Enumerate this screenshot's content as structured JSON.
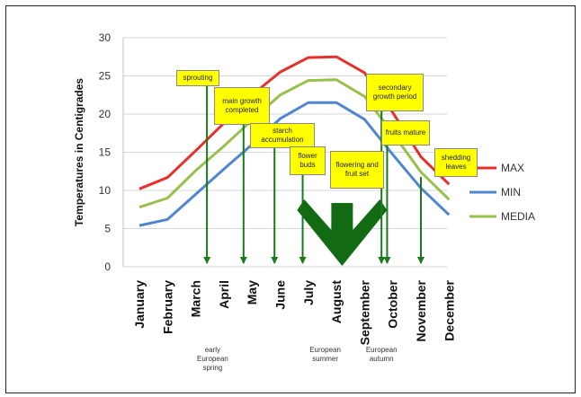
{
  "chart_data": {
    "type": "line",
    "ylabel": "Temperatures in Centigrades",
    "ylim": [
      0,
      30
    ],
    "yticks": [
      0,
      5,
      10,
      15,
      20,
      25,
      30
    ],
    "grid": "horizontal",
    "categories": [
      "January",
      "February",
      "March",
      "April",
      "May",
      "June",
      "July",
      "August",
      "September",
      "October",
      "November",
      "December"
    ],
    "series": [
      {
        "name": "MAX",
        "color": "#e8302a",
        "values": [
          10.2,
          11.7,
          15.2,
          18.8,
          22.5,
          25.5,
          27.4,
          27.5,
          25.4,
          20.2,
          14.4,
          10.8
        ]
      },
      {
        "name": "MIN",
        "color": "#4f86d0",
        "values": [
          5.4,
          6.2,
          9.5,
          12.8,
          16.0,
          19.4,
          21.5,
          21.5,
          19.3,
          14.7,
          10.3,
          6.8
        ]
      },
      {
        "name": "MEDIA",
        "color": "#98c04c",
        "values": [
          7.8,
          9.0,
          12.6,
          15.8,
          19.2,
          22.5,
          24.4,
          24.5,
          22.3,
          17.5,
          12.4,
          8.8
        ]
      }
    ],
    "legend_position": "right",
    "annotations": [
      {
        "text": "sprouting",
        "month_index": 2.4
      },
      {
        "text": "main growth completed",
        "month_index": 3.7
      },
      {
        "text": "starch accumulation",
        "month_index": 4.8
      },
      {
        "text": "flower buds",
        "month_index": 5.8
      },
      {
        "text": "flowering and fruit set",
        "month_index": 7.2
      },
      {
        "text": "secondary growth period",
        "month_index": 8.6
      },
      {
        "text": "fruits mature",
        "month_index": 8.8
      },
      {
        "text": "shedding leaves",
        "month_index": 10.0
      }
    ],
    "season_labels": [
      {
        "text": "early European spring",
        "month_index": 2.6
      },
      {
        "text": "European summer",
        "month_index": 6.6
      },
      {
        "text": "European autumn",
        "month_index": 8.6
      }
    ]
  }
}
